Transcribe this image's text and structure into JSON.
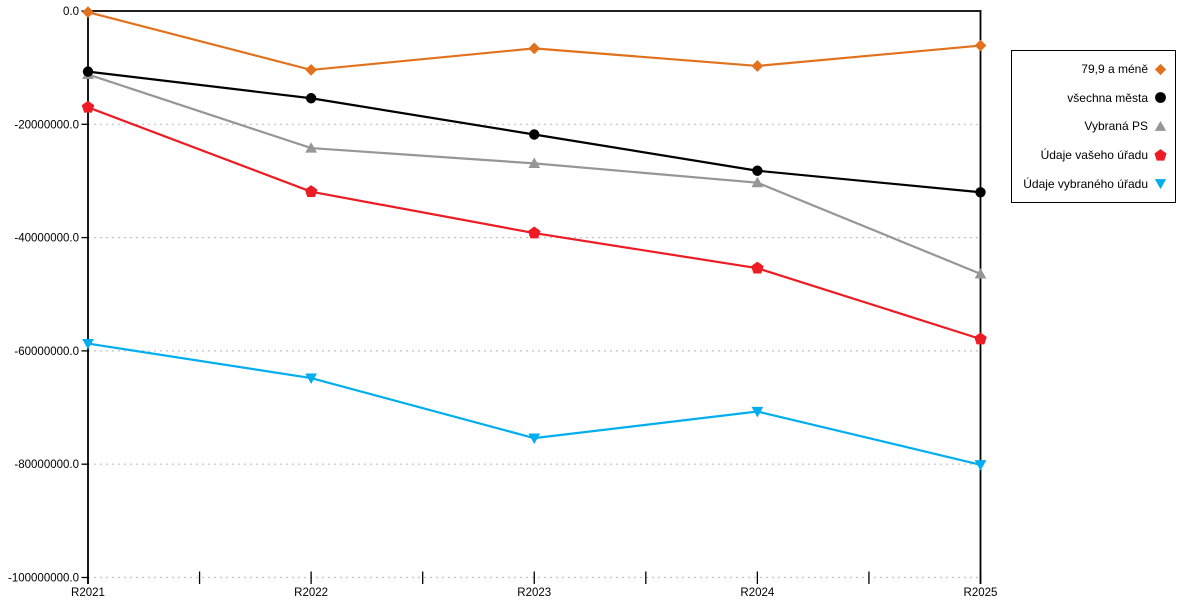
{
  "chart_data": {
    "type": "line",
    "title": "",
    "xlabel": "",
    "ylabel": "",
    "categories": [
      "R2021",
      "R2022",
      "R2023",
      "R2024",
      "R2025"
    ],
    "series": [
      {
        "name": "79,9 a méně",
        "color": "#E2711D",
        "marker": "diamond",
        "values": [
          -200000,
          -10400000,
          -6600000,
          -9700000,
          -6100000
        ]
      },
      {
        "name": "všechna města",
        "color": "#000000",
        "marker": "circle",
        "values": [
          -10700000,
          -15400000,
          -21800000,
          -28200000,
          -32000000
        ]
      },
      {
        "name": "Vybraná PS",
        "color": "#969696",
        "marker": "triangle-up",
        "values": [
          -11200000,
          -24200000,
          -26900000,
          -30300000,
          -46400000
        ]
      },
      {
        "name": "Údaje vašeho úřadu",
        "color": "#ED1C24",
        "marker": "pentagon",
        "values": [
          -17000000,
          -31900000,
          -39200000,
          -45400000,
          -57900000
        ]
      },
      {
        "name": "Údaje vybraného úřadu",
        "color": "#00AEEF",
        "marker": "triangle-down",
        "values": [
          -58700000,
          -64800000,
          -75400000,
          -70700000,
          -80100000
        ]
      }
    ],
    "y_axis": {
      "min": -100000000,
      "max": 0,
      "tick_step": 20000000,
      "tick_labels": [
        "0.0",
        "-20000000.0",
        "-40000000.0",
        "-60000000.0",
        "-80000000.0",
        "-100000000.0"
      ]
    },
    "grid": "horizontal-dashed",
    "gridline_color": "#c3c3c3",
    "axis_color": "#000000",
    "legend_position": "right"
  }
}
